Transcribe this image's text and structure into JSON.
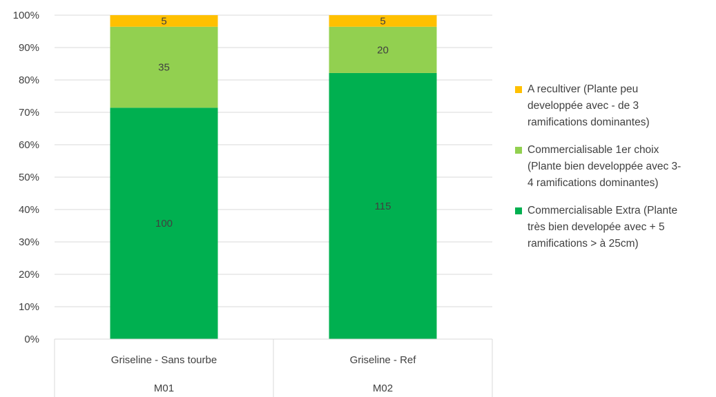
{
  "chart_data": {
    "type": "bar",
    "stacked": "percent",
    "categories": [
      {
        "label": "Griseline - Sans tourbe",
        "group": "M01"
      },
      {
        "label": "Griseline - Ref",
        "group": "M02"
      }
    ],
    "series": [
      {
        "name": "Commercialisable Extra (Plante très bien developée avec + 5 ramifications > à 25cm)",
        "color": "#00b050",
        "values": [
          100,
          115
        ]
      },
      {
        "name": "Commercialisable 1er choix (Plante bien developpée avec 3-4 ramifications dominantes)",
        "color": "#92d050",
        "values": [
          35,
          20
        ]
      },
      {
        "name": "A recultiver (Plante peu developpée avec - de 3 ramifications dominantes)",
        "color": "#ffc000",
        "values": [
          5,
          5
        ]
      }
    ],
    "ylim": [
      0,
      100
    ],
    "yticks": [
      "0%",
      "10%",
      "20%",
      "30%",
      "40%",
      "50%",
      "60%",
      "70%",
      "80%",
      "90%",
      "100%"
    ],
    "grid": true,
    "legend_position": "right"
  }
}
